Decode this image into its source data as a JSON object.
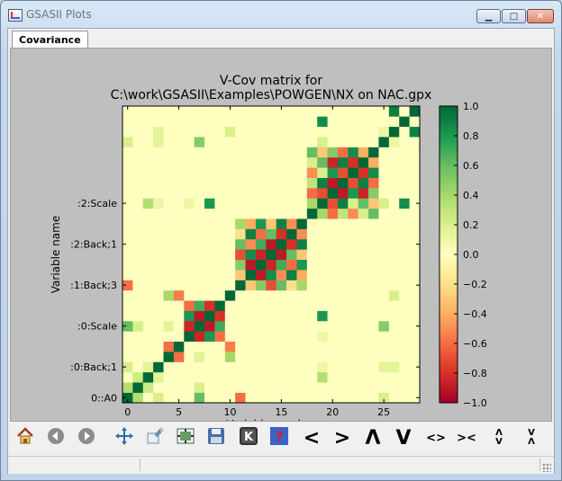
{
  "window": {
    "title": "GSASII Plots"
  },
  "tabs": [
    {
      "label": "Covariance",
      "active": true
    }
  ],
  "chart_data": {
    "type": "heatmap",
    "title": "V-Cov matrix for\nC:\\work\\GSASII\\Examples\\POWGEN\\NX on NAC.gpx",
    "xlabel": "Variable number",
    "ylabel": "Variable name",
    "x_ticks": [
      0,
      5,
      10,
      15,
      20,
      25
    ],
    "y_ticks": [
      {
        "value": 0,
        "label": "0::A0"
      },
      {
        "value": 3,
        "label": ":0:Back;1"
      },
      {
        "value": 7,
        "label": ":0:Scale"
      },
      {
        "value": 11,
        "label": ":1:Back;3"
      },
      {
        "value": 15,
        "label": ":2:Back;1"
      },
      {
        "value": 19,
        "label": ":2:Scale"
      }
    ],
    "xlim": [
      -0.5,
      28.5
    ],
    "ylim": [
      -0.5,
      28.5
    ],
    "colormap": [
      "#a50026",
      "#d73027",
      "#f46d43",
      "#fdae61",
      "#fee08b",
      "#ffffbf",
      "#d9ef8b",
      "#a6d96a",
      "#66bd63",
      "#1a9850",
      "#006837"
    ],
    "clim": [
      -1.0,
      1.0
    ],
    "colorbar_ticks": [
      "1.0",
      "0.8",
      "0.6",
      "0.4",
      "0.2",
      "0.0",
      "−0.2",
      "−0.4",
      "−0.6",
      "−0.8",
      "−1.0"
    ],
    "n": 29,
    "blocks": [
      {
        "indices": [
          6,
          7,
          8,
          9
        ],
        "values": [
          [
            1,
            -0.85,
            0.8,
            -0.6
          ],
          [
            -0.85,
            1,
            -0.9,
            0.7
          ],
          [
            0.8,
            -0.9,
            1,
            -0.8
          ],
          [
            -0.6,
            0.7,
            -0.8,
            1
          ]
        ]
      },
      {
        "indices": [
          11,
          12,
          13,
          14,
          15,
          16,
          17
        ],
        "values": [
          [
            1,
            -0.3,
            0.5,
            -0.7,
            0.6,
            -0.2,
            0.4
          ],
          [
            -0.3,
            1,
            -0.9,
            0.85,
            -0.5,
            0.9,
            -0.4
          ],
          [
            0.5,
            -0.9,
            1,
            -0.85,
            0.7,
            -0.6,
            0.8
          ],
          [
            -0.7,
            0.85,
            -0.85,
            1,
            -0.9,
            0.6,
            -0.3
          ],
          [
            0.6,
            -0.5,
            0.7,
            -0.9,
            1,
            -0.8,
            0.9
          ],
          [
            -0.2,
            0.9,
            -0.6,
            0.6,
            -0.8,
            1,
            -0.5
          ],
          [
            0.4,
            -0.4,
            0.8,
            -0.3,
            0.9,
            -0.5,
            1
          ]
        ]
      },
      {
        "indices": [
          18,
          19,
          20,
          21,
          22,
          23,
          24
        ],
        "values": [
          [
            1,
            0.4,
            -0.6,
            0.3,
            -0.5,
            0.2,
            0.6
          ],
          [
            0.4,
            1,
            -0.7,
            0.9,
            -0.4,
            0.6,
            -0.3
          ],
          [
            -0.6,
            -0.7,
            1,
            -0.9,
            0.8,
            -0.85,
            0.5
          ],
          [
            0.3,
            0.9,
            -0.9,
            1,
            -0.7,
            0.9,
            -0.6
          ],
          [
            -0.5,
            -0.4,
            0.8,
            -0.7,
            1,
            -0.8,
            0.85
          ],
          [
            0.2,
            0.6,
            -0.85,
            0.9,
            -0.8,
            1,
            -0.4
          ],
          [
            0.6,
            -0.3,
            0.5,
            -0.6,
            0.85,
            -0.4,
            1
          ]
        ]
      }
    ],
    "scattered": [
      [
        0,
        11,
        -0.6
      ],
      [
        0,
        1,
        0.35
      ],
      [
        1,
        2,
        0.25
      ],
      [
        2,
        3,
        0.15
      ],
      [
        0,
        3,
        0.2
      ],
      [
        4,
        10,
        0.4
      ],
      [
        5,
        10,
        -0.55
      ],
      [
        4,
        5,
        -0.6
      ],
      [
        3,
        25,
        0.15
      ],
      [
        0,
        25,
        0.2
      ],
      [
        0,
        7,
        0.6
      ],
      [
        1,
        7,
        0.2
      ],
      [
        7,
        25,
        0.5
      ],
      [
        7,
        4,
        0.15
      ],
      [
        2,
        19,
        0.35
      ],
      [
        3,
        19,
        0.1
      ],
      [
        8,
        19,
        0.8
      ],
      [
        19,
        25,
        0.2
      ],
      [
        25,
        26,
        0.1
      ],
      [
        27,
        19,
        0.85
      ],
      [
        26,
        28,
        0.9
      ],
      [
        19,
        22,
        0.2
      ],
      [
        10,
        26,
        0.2
      ],
      [
        3,
        26,
        0.15
      ],
      [
        6,
        19,
        0.1
      ]
    ]
  },
  "toolbar": {
    "buttons": [
      {
        "name": "home-icon",
        "label": "Home"
      },
      {
        "name": "back-icon",
        "label": "Back"
      },
      {
        "name": "forward-icon",
        "label": "Forward"
      },
      {
        "name": "pan-icon",
        "label": "Pan"
      },
      {
        "name": "zoom-icon",
        "label": "Zoom"
      },
      {
        "name": "subplots-icon",
        "label": "Subplots"
      },
      {
        "name": "save-icon",
        "label": "Save"
      },
      {
        "name": "key-icon",
        "label": "K"
      },
      {
        "name": "help-icon",
        "label": "?"
      },
      {
        "name": "shift-left-icon",
        "label": "<"
      },
      {
        "name": "shift-right-icon",
        "label": ">"
      },
      {
        "name": "shift-up-icon",
        "label": "Λ"
      },
      {
        "name": "shift-down-icon",
        "label": "V"
      },
      {
        "name": "expand-x-icon",
        "label": "<>"
      },
      {
        "name": "shrink-x-icon",
        "label": "><"
      },
      {
        "name": "expand-y-icon",
        "label": "Λ\nV"
      },
      {
        "name": "shrink-y-icon",
        "label": "V\nΛ"
      }
    ]
  }
}
